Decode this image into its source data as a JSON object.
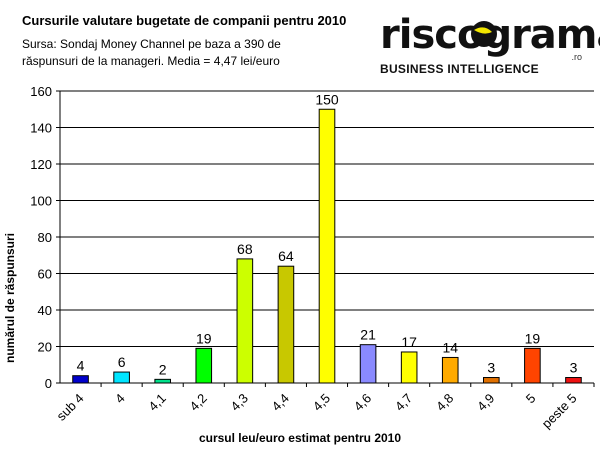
{
  "header": {
    "title": "Cursurile valutare bugetate de companii pentru 2010",
    "source_line1": "Sursa: Sondaj Money Channel pe baza a 390 de",
    "source_line2": "răspunsuri de la manageri. Media = 4,47 lei/euro"
  },
  "logo": {
    "word": "riscograma",
    "domain": ".ro",
    "tagline": "BUSINESS INTELLIGENCE",
    "accent_color": "#f2e600"
  },
  "chart_data": {
    "type": "bar",
    "categories": [
      "sub 4",
      "4",
      "4,1",
      "4,2",
      "4,3",
      "4,4",
      "4,5",
      "4,6",
      "4,7",
      "4,8",
      "4,9",
      "5",
      "peste 5"
    ],
    "values": [
      4,
      6,
      2,
      19,
      68,
      64,
      150,
      21,
      17,
      14,
      3,
      19,
      3
    ],
    "colors": [
      "#0000cc",
      "#00e5ff",
      "#00e08a",
      "#00ff00",
      "#ccff00",
      "#c8c800",
      "#ffff00",
      "#8a8aff",
      "#ffff00",
      "#ffaa00",
      "#e07000",
      "#ff4400",
      "#ee1111"
    ],
    "title": "Cursurile valutare bugetate de companii pentru 2010",
    "xlabel": "cursul leu/euro estimat pentru 2010",
    "ylabel": "numărul de răspunsuri",
    "ylim": [
      0,
      160
    ],
    "yticks": [
      0,
      20,
      40,
      60,
      80,
      100,
      120,
      140,
      160
    ],
    "grid": true,
    "legend": "none"
  }
}
